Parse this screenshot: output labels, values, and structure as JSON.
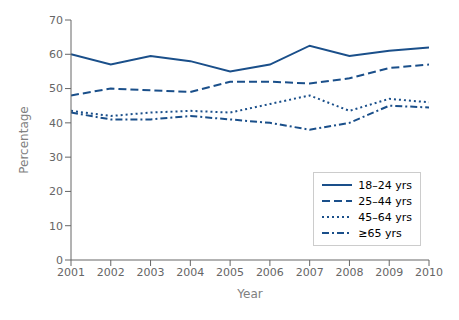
{
  "chart_data": {
    "type": "line",
    "xlabel": "Year",
    "ylabel": "Percentage",
    "x": [
      2001,
      2002,
      2003,
      2004,
      2005,
      2006,
      2007,
      2008,
      2009,
      2010
    ],
    "xlim": [
      2001,
      2010
    ],
    "xticks": [
      2001,
      2002,
      2003,
      2004,
      2005,
      2006,
      2007,
      2008,
      2009,
      2010
    ],
    "ylim": [
      0,
      70
    ],
    "yticks": [
      0,
      10,
      20,
      30,
      40,
      50,
      60,
      70
    ],
    "grid": false,
    "legend": "lower right",
    "series": [
      {
        "name": "18–24 yrs",
        "color": "#1a4f8a",
        "line_style": "solid",
        "values": [
          60,
          57,
          59.5,
          58,
          55,
          57,
          62.5,
          59.5,
          61,
          62
        ]
      },
      {
        "name": "25–44 yrs",
        "color": "#1a4f8a",
        "line_style": "dashed",
        "values": [
          48,
          50,
          49.5,
          49,
          52,
          52,
          51.5,
          53,
          56,
          57
        ]
      },
      {
        "name": "45–64 yrs",
        "color": "#1a4f8a",
        "line_style": "dotted",
        "values": [
          43.5,
          42,
          43,
          43.5,
          43,
          45.5,
          48,
          43.5,
          47,
          46
        ]
      },
      {
        "name": "≥65 yrs",
        "color": "#1a4f8a",
        "line_style": "dashdot",
        "values": [
          43,
          41,
          41,
          42,
          41,
          40,
          38,
          40,
          45,
          44.5
        ]
      }
    ]
  }
}
